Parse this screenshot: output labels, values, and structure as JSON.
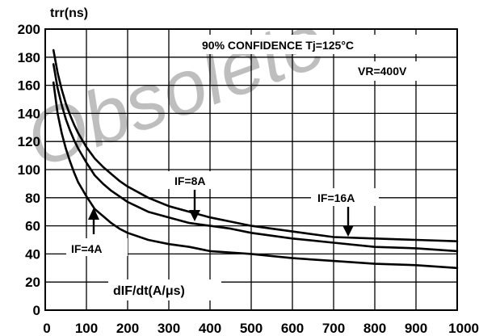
{
  "chart_data": {
    "type": "line",
    "ylabel": "trr(ns)",
    "xlabel": "dIF/dt(A/μs)",
    "xlim": [
      0,
      1000
    ],
    "ylim": [
      0,
      200
    ],
    "x_ticks": [
      "0",
      "100",
      "200",
      "300",
      "400",
      "500",
      "600",
      "700",
      "800",
      "900",
      "1000"
    ],
    "y_ticks": [
      "0",
      "20",
      "40",
      "60",
      "80",
      "100",
      "120",
      "140",
      "160",
      "180",
      "200"
    ],
    "grid": true,
    "annotations": [
      "90% CONFIDENCE Tj=125°C",
      "VR=400V"
    ],
    "series": [
      {
        "name": "IF=4A",
        "x": [
          20,
          30,
          40,
          50,
          60,
          70,
          80,
          90,
          100,
          120,
          140,
          160,
          180,
          200,
          250,
          300,
          350,
          400,
          450,
          500,
          600,
          700,
          800,
          900,
          1000
        ],
        "y": [
          162,
          140,
          126,
          115,
          106,
          98,
          91,
          86,
          81,
          72,
          67,
          62,
          58,
          55,
          50,
          47,
          45,
          42,
          41,
          40,
          37,
          35,
          33,
          32,
          30
        ]
      },
      {
        "name": "IF=8A",
        "x": [
          20,
          30,
          40,
          50,
          60,
          70,
          80,
          90,
          100,
          120,
          140,
          160,
          180,
          200,
          250,
          300,
          350,
          400,
          450,
          500,
          600,
          700,
          800,
          900,
          1000
        ],
        "y": [
          175,
          158,
          146,
          136,
          128,
          121,
          115,
          110,
          105,
          96,
          90,
          85,
          81,
          77,
          70,
          66,
          62,
          60,
          58,
          55,
          51,
          48,
          45,
          44,
          42
        ]
      },
      {
        "name": "IF=16A",
        "x": [
          20,
          30,
          40,
          50,
          60,
          70,
          80,
          90,
          100,
          120,
          140,
          160,
          180,
          200,
          250,
          300,
          350,
          400,
          450,
          500,
          600,
          700,
          800,
          900,
          1000
        ],
        "y": [
          185,
          169,
          157,
          147,
          139,
          132,
          126,
          121,
          116,
          108,
          102,
          97,
          92,
          88,
          80,
          74,
          70,
          66,
          63,
          60,
          56,
          52,
          51,
          50,
          49
        ]
      }
    ],
    "curve_labels": [
      {
        "text": "IF=4A",
        "series": "IF=4A"
      },
      {
        "text": "IF=8A",
        "series": "IF=8A"
      },
      {
        "text": "IF=16A",
        "series": "IF=16A"
      }
    ]
  }
}
